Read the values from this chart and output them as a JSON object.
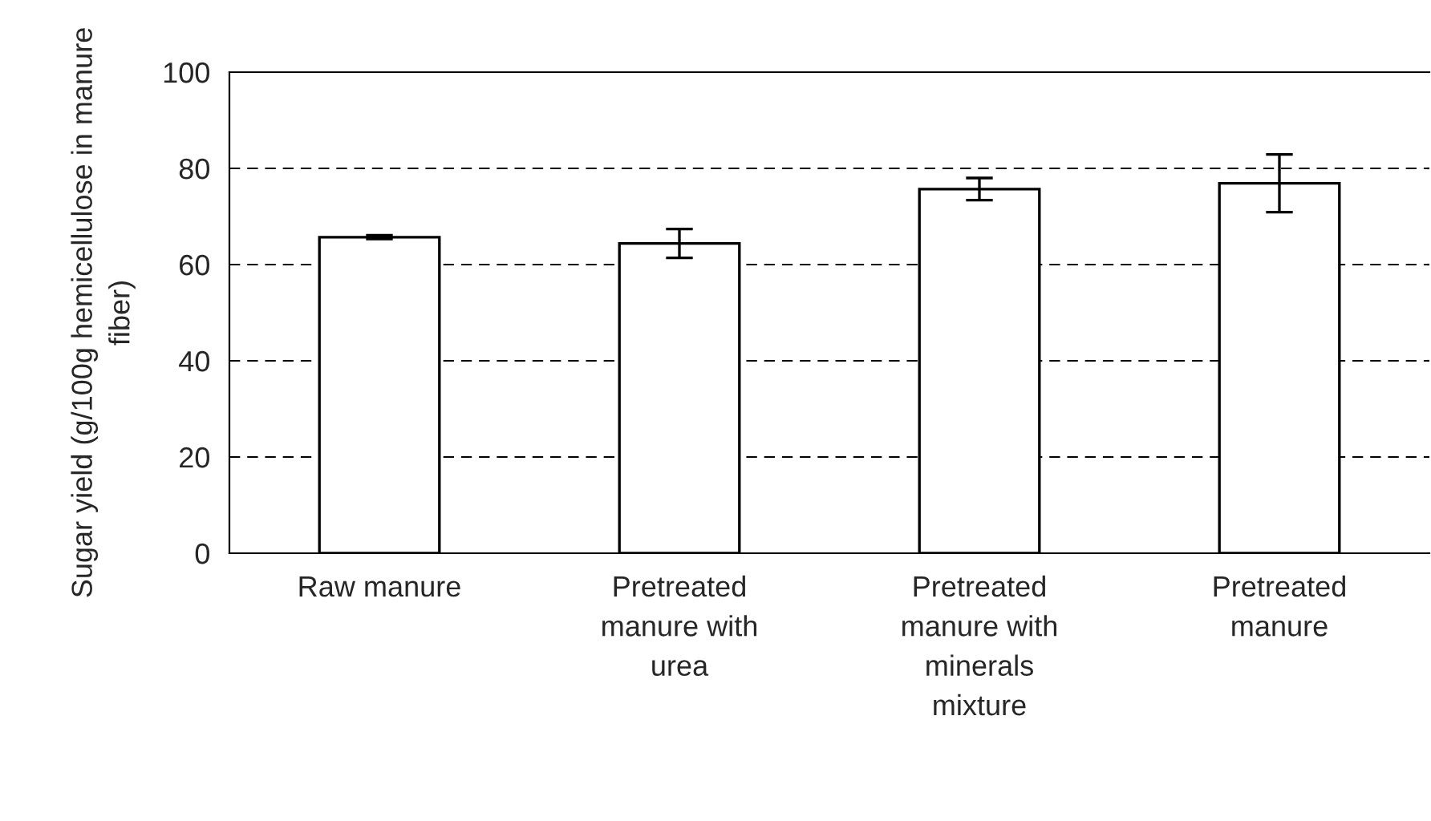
{
  "chart_data": {
    "type": "bar",
    "ylabel": "Sugar yield (g/100g hemicellulose in manure\nfiber)",
    "categories": [
      "Raw manure",
      "Pretreated\nmanure with\nurea",
      "Pretreated\nmanure with\nminerals\nmixture",
      "Pretreated\nmanure"
    ],
    "values": [
      65.7,
      64.4,
      75.7,
      76.9
    ],
    "errors": [
      0.4,
      3.0,
      2.3,
      6.0
    ],
    "color": "#ffffff",
    "ylim": [
      0,
      100
    ],
    "yticks": [
      0,
      20,
      40,
      60,
      80,
      100
    ],
    "grid": "y",
    "line_style": "dashed"
  }
}
